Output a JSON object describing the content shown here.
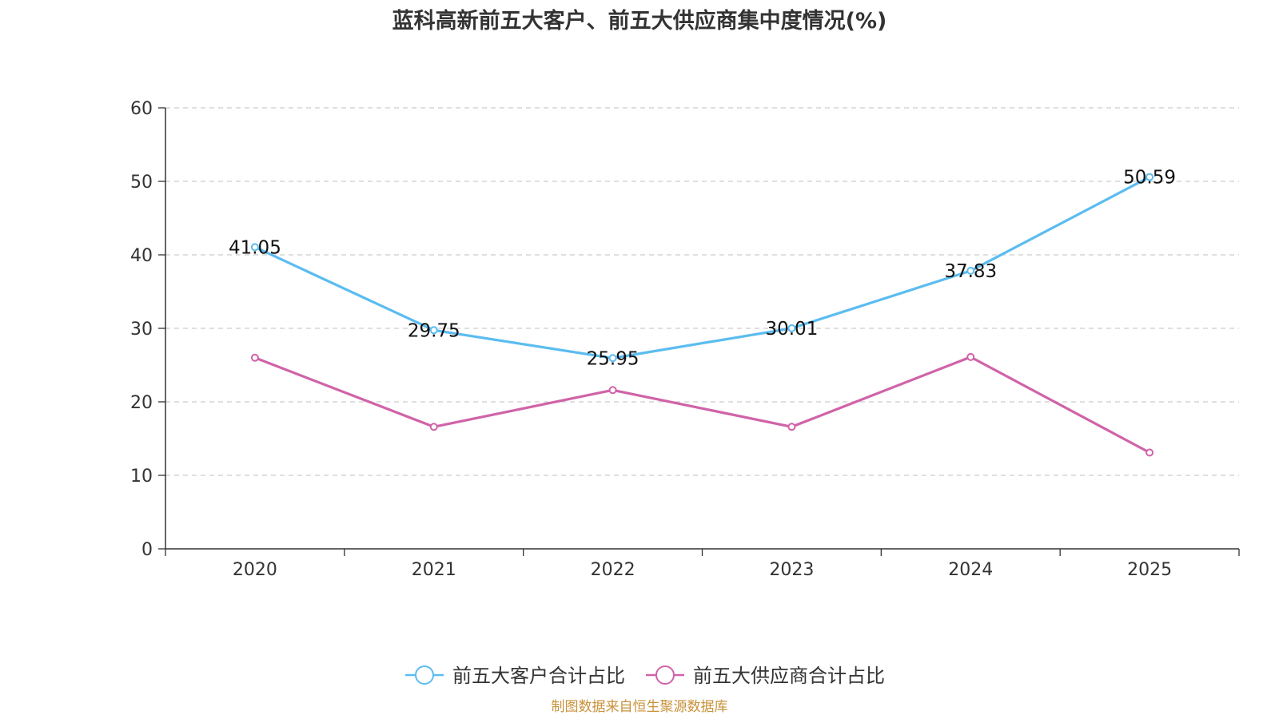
{
  "chart_data": {
    "type": "line",
    "title": "蓝科高新前五大客户、前五大供应商集中度情况(%)",
    "categories": [
      "2020",
      "2021",
      "2022",
      "2023",
      "2024",
      "2025"
    ],
    "ylim": [
      0,
      60
    ],
    "yticks": [
      0,
      10,
      20,
      30,
      40,
      50,
      60
    ],
    "grid": true,
    "legend_position": "bottom",
    "series": [
      {
        "name": "前五大客户合计占比",
        "color": "#5bbcf0",
        "values": [
          41.05,
          29.75,
          25.95,
          30.01,
          37.83,
          50.59
        ],
        "labels": [
          "41.05",
          "29.75",
          "25.95",
          "30.01",
          "37.83",
          "50.59"
        ]
      },
      {
        "name": "前五大供应商合计占比",
        "color": "#d063a8",
        "values": [
          26.0,
          16.6,
          21.6,
          16.6,
          26.1,
          13.1
        ]
      }
    ]
  },
  "source_note": "制图数据来自恒生聚源数据库"
}
